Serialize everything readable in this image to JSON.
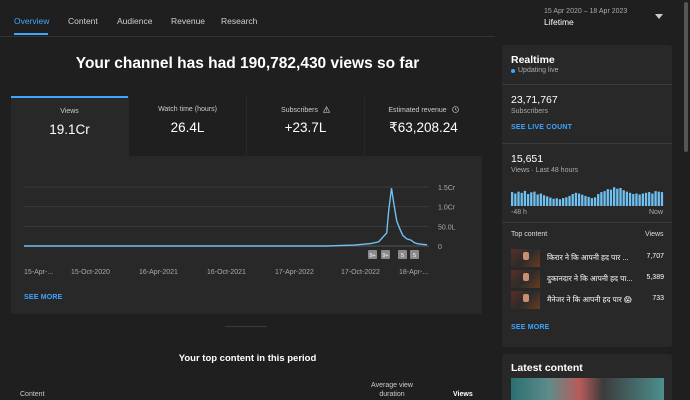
{
  "tabs": [
    {
      "label": "Overview"
    },
    {
      "label": "Content"
    },
    {
      "label": "Audience"
    },
    {
      "label": "Revenue"
    },
    {
      "label": "Research"
    }
  ],
  "date_picker": {
    "range": "15 Apr 2020 – 18 Apr 2023",
    "label": "Lifetime"
  },
  "headline": "Your channel has had 190,782,430 views so far",
  "metrics": [
    {
      "title": "Views",
      "value": "19.1Cr"
    },
    {
      "title": "Watch time (hours)",
      "value": "26.4L"
    },
    {
      "title": "Subscribers",
      "value": "+23.7L"
    },
    {
      "title": "Estimated revenue",
      "value": "₹63,208.24"
    }
  ],
  "see_more": "SEE MORE",
  "chart_data": {
    "type": "line",
    "x_tick_labels": [
      "15-Apr-...",
      "15-Oct-2020",
      "16-Apr-2021",
      "16-Oct-2021",
      "17-Apr-2022",
      "17-Oct-2022",
      "18-Apr-..."
    ],
    "y_tick_labels": [
      "1.5Cr",
      "1.0Cr",
      "50.0L",
      "0"
    ],
    "ylim": [
      0,
      15000000
    ],
    "series": [
      {
        "color": "#6fc1f2",
        "points": [
          [
            0,
            0
          ],
          [
            0.2,
            0
          ],
          [
            0.4,
            0
          ],
          [
            0.6,
            0
          ],
          [
            0.75,
            0
          ],
          [
            0.82,
            0.015
          ],
          [
            0.86,
            0.04
          ],
          [
            0.88,
            0.07
          ],
          [
            0.9,
            0.22
          ],
          [
            0.905,
            0.6
          ],
          [
            0.912,
            0.98
          ],
          [
            0.918,
            0.7
          ],
          [
            0.925,
            0.42
          ],
          [
            0.932,
            0.3
          ],
          [
            0.94,
            0.18
          ],
          [
            0.95,
            0.12
          ],
          [
            0.96,
            0.1
          ],
          [
            0.968,
            0.06
          ],
          [
            0.975,
            0.04
          ],
          [
            0.985,
            0.03
          ],
          [
            1.0,
            0.02
          ]
        ]
      }
    ],
    "event_badges": [
      "9+",
      "9+",
      "5",
      "5"
    ]
  },
  "top_content": {
    "title": "Your top content in this period",
    "columns": [
      "Content",
      "Average view duration",
      "Views"
    ]
  },
  "realtime": {
    "title": "Realtime",
    "status": "Updating live",
    "subscribers_value": "23,71,767",
    "subscribers_label": "Subscribers",
    "see_live_count": "SEE LIVE COUNT",
    "views_value": "15,651",
    "views_label": "Views · Last 48 hours",
    "x_start": "-48 h",
    "x_end": "Now",
    "hourly_bars": [
      0.58,
      0.52,
      0.6,
      0.55,
      0.63,
      0.5,
      0.57,
      0.6,
      0.48,
      0.52,
      0.45,
      0.4,
      0.35,
      0.3,
      0.32,
      0.28,
      0.33,
      0.36,
      0.42,
      0.5,
      0.55,
      0.52,
      0.47,
      0.42,
      0.38,
      0.33,
      0.36,
      0.5,
      0.58,
      0.62,
      0.7,
      0.68,
      0.78,
      0.72,
      0.75,
      0.66,
      0.6,
      0.55,
      0.5,
      0.52,
      0.48,
      0.52,
      0.55,
      0.58,
      0.52,
      0.62,
      0.6,
      0.58
    ],
    "top_content_label": "Top content",
    "views_col_label": "Views",
    "items": [
      {
        "title": "किरार ने कि आपनी हद पार ...",
        "views": "7,707"
      },
      {
        "title": "दुकानदार ने कि आपनी हद पा...",
        "views": "5,389"
      },
      {
        "title": "मैनेजर ने कि आपनी हद पार 😱",
        "views": "733"
      }
    ],
    "see_more": "SEE MORE"
  },
  "latest_content": {
    "title": "Latest content"
  },
  "colors": {
    "accent": "#3ea6ff",
    "background": "#1f1f1f",
    "card": "#282828",
    "line": "#6fc1f2"
  }
}
